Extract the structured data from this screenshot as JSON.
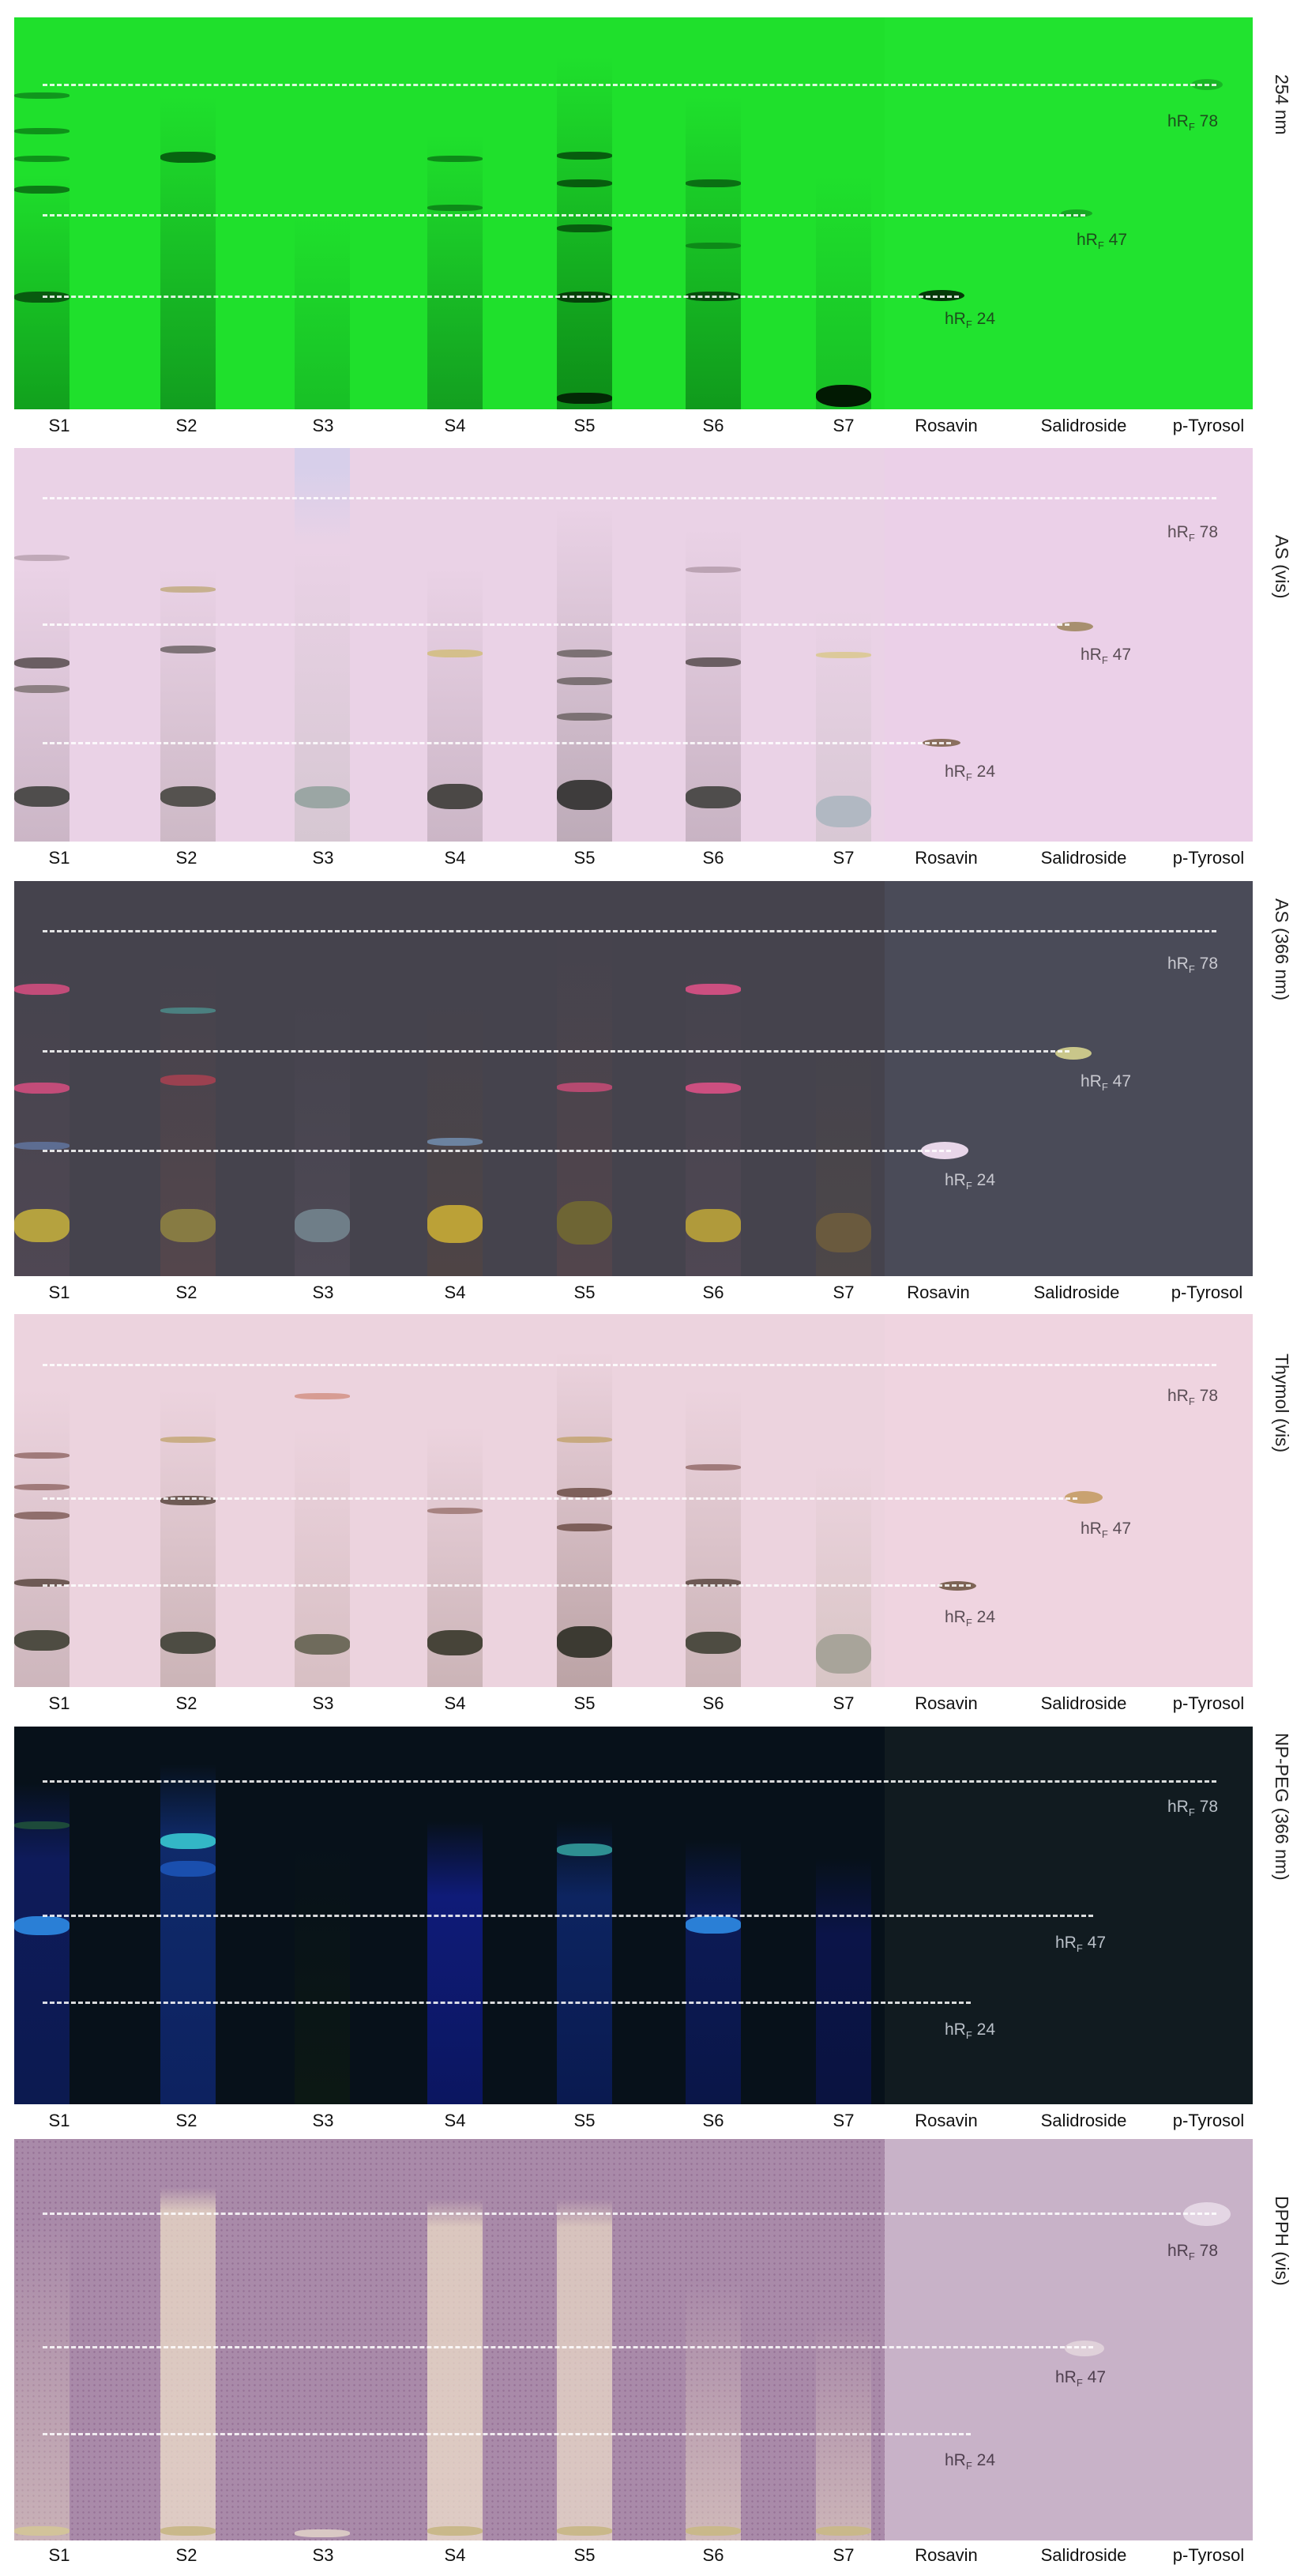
{
  "lanes": [
    "S1",
    "S2",
    "S3",
    "S4",
    "S5",
    "S6",
    "S7",
    "Rosavin",
    "Salidroside",
    "p-Tyrosol"
  ],
  "hrf_labels": [
    "hRF 78",
    "hRF 47",
    "hRF 24"
  ],
  "hrf_prefix": "hR",
  "hrf_sub": "F",
  "hrf_values": [
    "78",
    "47",
    "24"
  ],
  "panels": [
    {
      "detection": "254 nm",
      "background": "#1fe02c"
    },
    {
      "detection": "AS (vis)",
      "background": "#ead2e6"
    },
    {
      "detection": "AS (366 nm)",
      "background": "#45434d"
    },
    {
      "detection": "Thymol (vis)",
      "background": "#ecd3de"
    },
    {
      "detection": "NP-PEG (366 nm)",
      "background": "#07111a"
    },
    {
      "detection": "DPPH (vis)",
      "background": "#a98aa9"
    }
  ]
}
